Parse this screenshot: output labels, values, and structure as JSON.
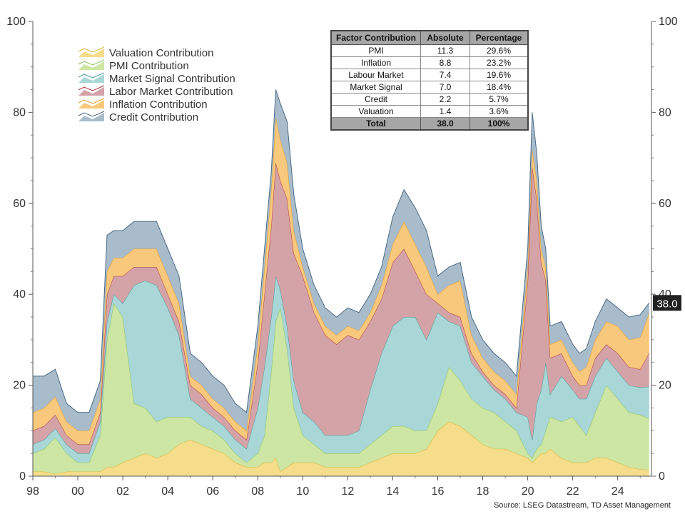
{
  "chart_data": {
    "type": "area",
    "stacked": true,
    "x_tick_labels": [
      "98",
      "00",
      "02",
      "04",
      "06",
      "08",
      "10",
      "12",
      "14",
      "16",
      "18",
      "20",
      "22",
      "24"
    ],
    "y_tick_labels": [
      "0",
      "20",
      "40",
      "60",
      "80",
      "100"
    ],
    "ylim": [
      0,
      100
    ],
    "xlim": [
      1998,
      2025.5
    ],
    "last_value_label": "38.0",
    "legend_position": "top-left",
    "legend": [
      {
        "name": "Valuation Contribution",
        "color": "#f6dd8c"
      },
      {
        "name": "PMI Contribution",
        "color": "#cde6a4"
      },
      {
        "name": "Market Signal Contribution",
        "color": "#a9d6d6"
      },
      {
        "name": "Labor Market Contribution",
        "color": "#d4a3a8"
      },
      {
        "name": "Inflation Contribution",
        "color": "#f8c97c"
      },
      {
        "name": "Credit Contribution",
        "color": "#a9bccb"
      }
    ],
    "line_colors": [
      "#d9b530",
      "#8cc35a",
      "#4a9a9a",
      "#b03a3a",
      "#e09a2a",
      "#4a6a85"
    ],
    "x": [
      1998.0,
      1998.5,
      1999.0,
      1999.5,
      2000.0,
      2000.5,
      2001.0,
      2001.3,
      2001.6,
      2002.0,
      2002.5,
      2003.0,
      2003.5,
      2004.0,
      2004.5,
      2005.0,
      2005.5,
      2006.0,
      2006.5,
      2007.0,
      2007.5,
      2008.0,
      2008.3,
      2008.6,
      2008.8,
      2009.0,
      2009.3,
      2009.6,
      2010.0,
      2010.5,
      2011.0,
      2011.5,
      2012.0,
      2012.5,
      2013.0,
      2013.5,
      2014.0,
      2014.5,
      2015.0,
      2015.5,
      2016.0,
      2016.5,
      2017.0,
      2017.5,
      2018.0,
      2018.5,
      2019.0,
      2019.5,
      2020.0,
      2020.2,
      2020.4,
      2020.6,
      2020.8,
      2021.0,
      2021.5,
      2022.0,
      2022.3,
      2022.6,
      2023.0,
      2023.5,
      2024.0,
      2024.5,
      2025.0,
      2025.4
    ],
    "series": [
      {
        "name": "Valuation Contribution",
        "values": [
          1,
          1,
          0.5,
          1,
          1,
          1,
          1,
          2,
          2,
          3,
          4,
          5,
          4,
          5,
          7,
          8,
          7,
          6,
          5,
          3,
          2,
          2,
          3,
          3,
          4,
          1,
          2,
          3,
          3,
          3,
          2,
          2,
          2,
          2,
          3,
          4,
          5,
          5,
          5,
          6,
          10,
          12,
          11,
          9,
          7,
          6,
          6,
          5,
          4,
          3,
          4,
          5,
          5,
          6,
          4,
          3,
          3,
          3,
          4,
          4,
          3,
          2,
          1.5,
          1.4
        ]
      },
      {
        "name": "PMI Contribution",
        "values": [
          4,
          5,
          8,
          4,
          2,
          2,
          8,
          28,
          36,
          32,
          12,
          10,
          8,
          8,
          6,
          5,
          4,
          4,
          3,
          2,
          1,
          3,
          6,
          20,
          30,
          36,
          26,
          12,
          6,
          4,
          3,
          3,
          3,
          3,
          4,
          5,
          6,
          6,
          5,
          4,
          6,
          12,
          10,
          8,
          8,
          8,
          6,
          5,
          1,
          1,
          2,
          2,
          5,
          7,
          8,
          10,
          8,
          6,
          10,
          16,
          14,
          12,
          12,
          11.3
        ]
      },
      {
        "name": "Market Signal Contribution",
        "values": [
          2,
          2,
          2,
          2,
          2,
          2,
          3,
          4,
          2,
          3,
          26,
          28,
          30,
          24,
          18,
          4,
          4,
          3,
          3,
          3,
          3,
          10,
          15,
          12,
          10,
          4,
          5,
          6,
          5,
          5,
          4,
          4,
          4,
          5,
          12,
          18,
          22,
          24,
          25,
          20,
          20,
          10,
          12,
          8,
          7,
          5,
          5,
          4,
          8,
          4,
          10,
          12,
          15,
          5,
          10,
          6,
          6,
          8,
          8,
          6,
          6,
          6,
          6,
          7.0
        ]
      },
      {
        "name": "Labor Market Contribution",
        "values": [
          3,
          3,
          3,
          2,
          2,
          2,
          2,
          6,
          4,
          6,
          4,
          3,
          4,
          3,
          3,
          3,
          3,
          2,
          2,
          2,
          2,
          10,
          16,
          20,
          25,
          24,
          28,
          28,
          30,
          24,
          22,
          20,
          22,
          20,
          15,
          12,
          14,
          15,
          10,
          10,
          2,
          2,
          2,
          2,
          1,
          1,
          1,
          1,
          30,
          60,
          45,
          28,
          18,
          8,
          5,
          3,
          3,
          3,
          4,
          3,
          4,
          4,
          4,
          7.4
        ]
      },
      {
        "name": "Inflation Contribution",
        "values": [
          4,
          4,
          4,
          3,
          3,
          3,
          3,
          5,
          4,
          4,
          4,
          4,
          4,
          4,
          4,
          2,
          2,
          2,
          2,
          2,
          2,
          4,
          6,
          8,
          10,
          9,
          8,
          5,
          2,
          2,
          2,
          2,
          2,
          2,
          2,
          3,
          4,
          6,
          6,
          6,
          2,
          6,
          8,
          4,
          3,
          3,
          3,
          3,
          3,
          4,
          4,
          3,
          3,
          3,
          3,
          3,
          3,
          4,
          4,
          5,
          6,
          6,
          7,
          8.8
        ]
      },
      {
        "name": "Credit Contribution",
        "values": [
          8,
          7,
          6,
          4,
          4,
          4,
          4,
          8,
          6,
          6,
          6,
          6,
          6,
          6,
          6,
          5,
          5,
          5,
          5,
          4,
          4,
          4,
          4,
          4,
          6,
          8,
          9,
          8,
          4,
          4,
          4,
          4,
          4,
          4,
          4,
          4,
          6,
          7,
          8,
          8,
          4,
          4,
          4,
          4,
          4,
          4,
          4,
          4,
          4,
          8,
          6,
          5,
          4,
          4,
          4,
          4,
          4,
          4,
          4,
          5,
          4,
          5,
          5,
          2.2
        ]
      }
    ]
  },
  "table": {
    "headers": [
      "Factor Contribution",
      "Absolute",
      "Percentage"
    ],
    "rows": [
      [
        "PMI",
        "11.3",
        "29.6%"
      ],
      [
        "Inflation",
        "8.8",
        "23.2%"
      ],
      [
        "Labour Market",
        "7.4",
        "19.6%"
      ],
      [
        "Market Signal",
        "7.0",
        "18.4%"
      ],
      [
        "Credit",
        "2.2",
        "5.7%"
      ],
      [
        "Valuation",
        "1.4",
        "3.6%"
      ]
    ],
    "total": [
      "Total",
      "38.0",
      "100%"
    ]
  },
  "source": "Source: LSEG Datastream, TD Asset Management"
}
